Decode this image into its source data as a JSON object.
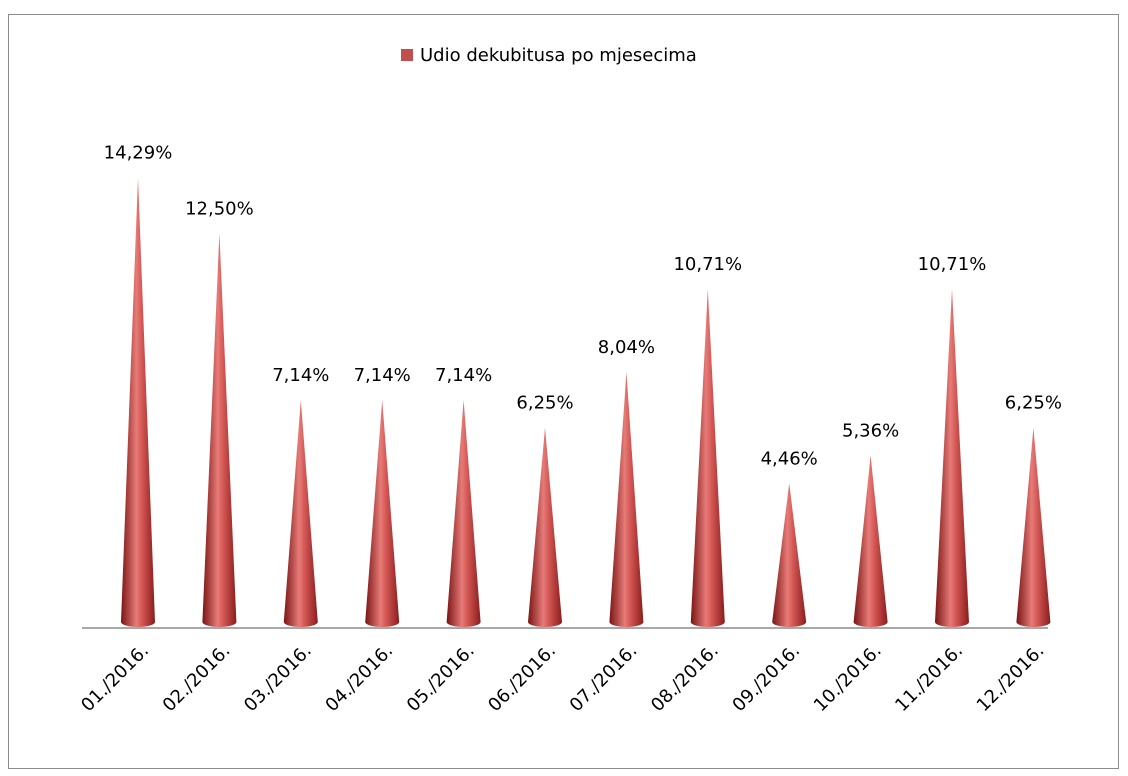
{
  "chart_data": {
    "type": "cone",
    "legend": "Udio dekubitusa po mjesecima",
    "color": "#c0504d",
    "categories": [
      "01./2016.",
      "02./2016.",
      "03./2016.",
      "04./2016.",
      "05./2016.",
      "06./2016.",
      "07./2016.",
      "08./2016.",
      "09./2016.",
      "10./2016.",
      "11./2016.",
      "12./2016."
    ],
    "values": [
      14.29,
      12.5,
      7.14,
      7.14,
      7.14,
      6.25,
      8.04,
      10.71,
      4.46,
      5.36,
      10.71,
      6.25
    ],
    "value_labels": [
      "14,29%",
      "12,50%",
      "7,14%",
      "7,14%",
      "7,14%",
      "6,25%",
      "8,04%",
      "10,71%",
      "4,46%",
      "5,36%",
      "10,71%",
      "6,25%"
    ]
  }
}
